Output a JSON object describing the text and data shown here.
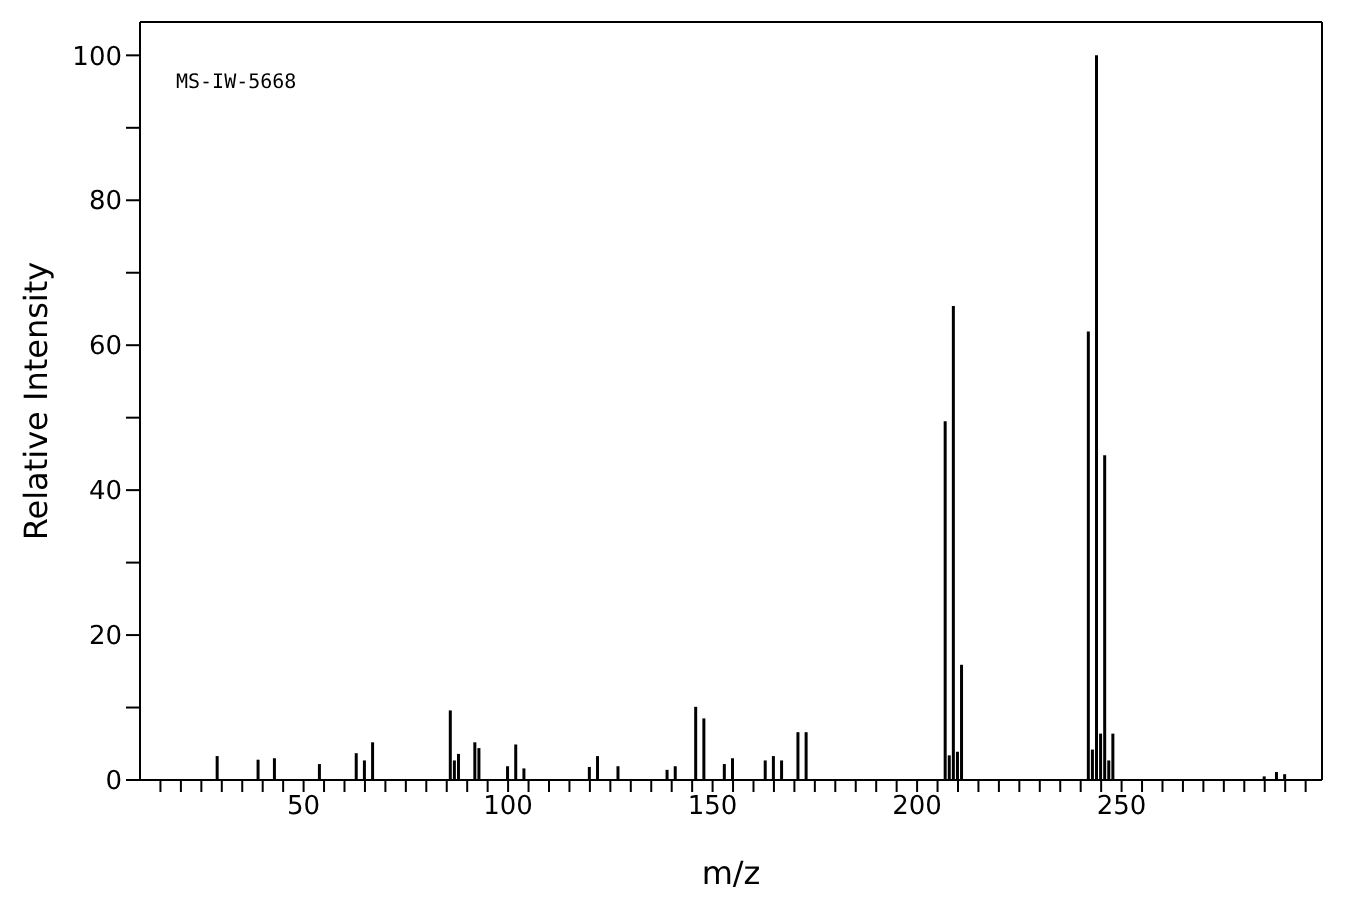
{
  "chart_data": {
    "type": "bar",
    "xlabel": "m/z",
    "ylabel": "Relative Intensity",
    "color": "#000000",
    "annotations": [
      "MS-IW-5668"
    ],
    "x": [
      29,
      39,
      43,
      54,
      63,
      65,
      67,
      86,
      87,
      88,
      92,
      93,
      100,
      102,
      104,
      120,
      122,
      127,
      139,
      141,
      146,
      148,
      153,
      155,
      163,
      165,
      167,
      171,
      173,
      207,
      208,
      209,
      210,
      211,
      242,
      243,
      244,
      245,
      246,
      247,
      248,
      285,
      288,
      290
    ],
    "values": [
      3.3,
      2.8,
      3.0,
      2.2,
      3.7,
      2.7,
      5.2,
      9.6,
      2.7,
      3.6,
      5.2,
      4.4,
      1.9,
      4.9,
      1.6,
      1.8,
      3.3,
      1.9,
      1.4,
      1.9,
      10.1,
      8.5,
      2.2,
      3.0,
      2.7,
      3.3,
      2.7,
      6.6,
      6.6,
      49.5,
      3.4,
      65.4,
      3.9,
      15.9,
      61.9,
      4.2,
      100,
      6.4,
      44.8,
      2.7,
      6.4,
      0.5,
      1.1,
      0.8
    ],
    "xlim": [
      10,
      299
    ],
    "xticks": [
      {
        "value": 15,
        "label": null
      },
      {
        "value": 20,
        "label": null
      },
      {
        "value": 25,
        "label": null
      },
      {
        "value": 30,
        "label": null
      },
      {
        "value": 35,
        "label": null
      },
      {
        "value": 40,
        "label": null
      },
      {
        "value": 45,
        "label": null
      },
      50,
      {
        "value": 55,
        "label": null
      },
      {
        "value": 60,
        "label": null
      },
      {
        "value": 65,
        "label": null
      },
      {
        "value": 70,
        "label": null
      },
      {
        "value": 75,
        "label": null
      },
      {
        "value": 80,
        "label": null
      },
      {
        "value": 85,
        "label": null
      },
      {
        "value": 90,
        "label": null
      },
      {
        "value": 95,
        "label": null
      },
      100,
      {
        "value": 105,
        "label": null
      },
      {
        "value": 110,
        "label": null
      },
      {
        "value": 115,
        "label": null
      },
      {
        "value": 120,
        "label": null
      },
      {
        "value": 125,
        "label": null
      },
      {
        "value": 130,
        "label": null
      },
      {
        "value": 135,
        "label": null
      },
      {
        "value": 140,
        "label": null
      },
      {
        "value": 145,
        "label": null
      },
      150,
      {
        "value": 155,
        "label": null
      },
      {
        "value": 160,
        "label": null
      },
      {
        "value": 165,
        "label": null
      },
      {
        "value": 170,
        "label": null
      },
      {
        "value": 175,
        "label": null
      },
      {
        "value": 180,
        "label": null
      },
      {
        "value": 185,
        "label": null
      },
      {
        "value": 190,
        "label": null
      },
      {
        "value": 195,
        "label": null
      },
      200,
      {
        "value": 205,
        "label": null
      },
      {
        "value": 210,
        "label": null
      },
      {
        "value": 215,
        "label": null
      },
      {
        "value": 220,
        "label": null
      },
      {
        "value": 225,
        "label": null
      },
      {
        "value": 230,
        "label": null
      },
      {
        "value": 235,
        "label": null
      },
      {
        "value": 240,
        "label": null
      },
      {
        "value": 245,
        "label": null
      },
      250,
      {
        "value": 255,
        "label": null
      },
      {
        "value": 260,
        "label": null
      },
      {
        "value": 265,
        "label": null
      },
      {
        "value": 270,
        "label": null
      },
      {
        "value": 275,
        "label": null
      },
      {
        "value": 280,
        "label": null
      },
      {
        "value": 285,
        "label": null
      },
      {
        "value": 290,
        "label": null
      },
      {
        "value": 295,
        "label": null
      }
    ],
    "ylim": [
      0,
      104.6
    ],
    "yticks": [
      0,
      {
        "value": 10,
        "label": null
      },
      20,
      {
        "value": 30,
        "label": null
      },
      40,
      {
        "value": 50,
        "label": null
      },
      60,
      {
        "value": 70,
        "label": null
      },
      80,
      {
        "value": 90,
        "label": null
      },
      100
    ],
    "grid": false,
    "legend": false
  }
}
